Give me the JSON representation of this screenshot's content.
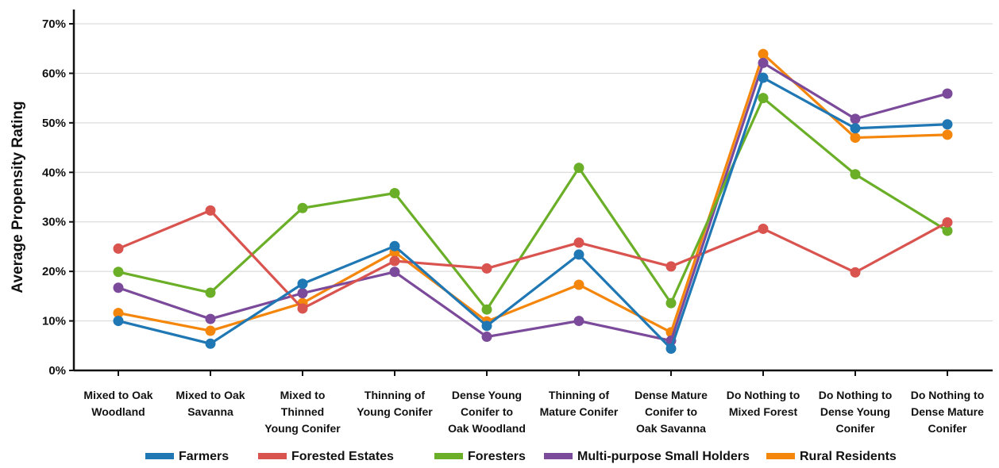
{
  "chart_data": {
    "type": "line",
    "title": "",
    "xlabel": "",
    "ylabel": "Average Propensity Rating",
    "ylim": [
      0,
      70
    ],
    "y_ticks": [
      0,
      10,
      20,
      30,
      40,
      50,
      60,
      70
    ],
    "y_tick_labels": [
      "0%",
      "10%",
      "20%",
      "30%",
      "40%",
      "50%",
      "60%",
      "70%"
    ],
    "grid": "horizontal",
    "legend_position": "bottom",
    "categories": [
      [
        "Mixed to Oak",
        "Woodland"
      ],
      [
        "Mixed to Oak",
        "Savanna"
      ],
      [
        "Mixed to",
        "Thinned",
        "Young Conifer"
      ],
      [
        "Thinning of",
        "Young Conifer"
      ],
      [
        "Dense Young",
        "Conifer to",
        "Oak Woodland"
      ],
      [
        "Thinning of",
        "Mature Conifer"
      ],
      [
        "Dense Mature",
        "Conifer to",
        "Oak Savanna"
      ],
      [
        "Do Nothing to",
        "Mixed Forest"
      ],
      [
        "Do Nothing to",
        "Dense Young",
        "Conifer"
      ],
      [
        "Do Nothing to",
        "Dense Mature",
        "Conifer"
      ]
    ],
    "series": [
      {
        "name": "Farmers",
        "color": "#1f77b4",
        "values": [
          10.0,
          5.4,
          17.5,
          25.1,
          9.0,
          23.4,
          4.4,
          59.1,
          48.9,
          49.7
        ]
      },
      {
        "name": "Forested Estates",
        "color": "#d9534f",
        "values": [
          24.6,
          32.3,
          12.5,
          22.1,
          20.6,
          25.8,
          21.0,
          28.6,
          19.8,
          29.9
        ]
      },
      {
        "name": "Foresters",
        "color": "#6aaf27",
        "values": [
          19.9,
          15.7,
          32.8,
          35.8,
          12.3,
          40.9,
          13.6,
          55.0,
          39.6,
          28.2
        ]
      },
      {
        "name": "Multi-purpose Small Holders",
        "color": "#7b4a9a",
        "values": [
          16.7,
          10.4,
          15.6,
          19.9,
          6.8,
          10.0,
          6.0,
          62.1,
          50.8,
          55.9
        ]
      },
      {
        "name": "Rural Residents",
        "color": "#f4860b",
        "values": [
          11.6,
          8.0,
          13.6,
          23.9,
          9.9,
          17.3,
          7.7,
          63.9,
          47.0,
          47.6
        ]
      }
    ],
    "draw_order": [
      "Rural Residents",
      "Multi-purpose Small Holders",
      "Foresters",
      "Forested Estates",
      "Farmers"
    ]
  }
}
